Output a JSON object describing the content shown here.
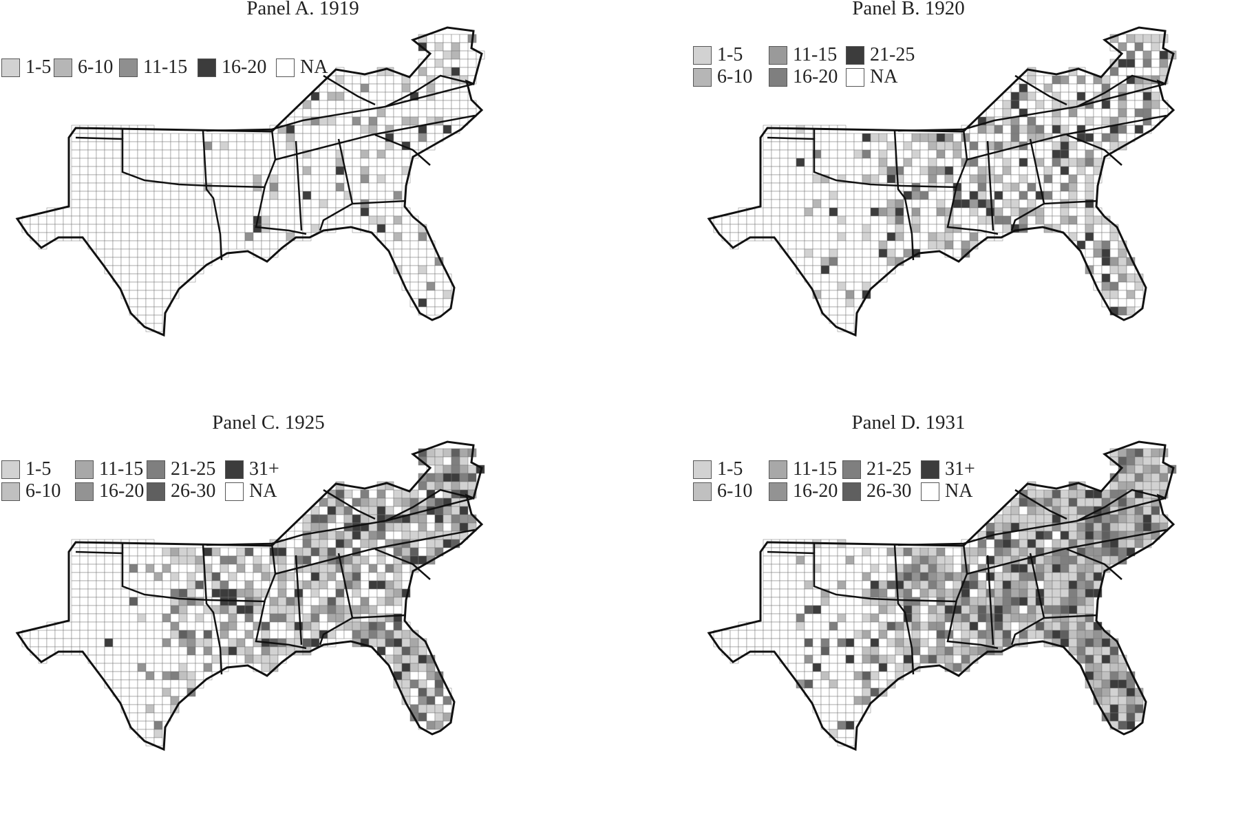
{
  "colors": {
    "na": "#ffffff",
    "c1": "#d2d2d2",
    "c2": "#b6b6b6",
    "c3": "#9a9a9a",
    "c4": "#7f7f7f",
    "c5": "#5f5f5f",
    "c6": "#3c3c3c",
    "border": "#111111",
    "county": "#777777"
  },
  "panels": [
    {
      "title": "Panel A. 1919",
      "legend_columns": 5,
      "legend": [
        {
          "label": "1-5",
          "color": "#d2d2d2"
        },
        {
          "label": "6-10",
          "color": "#b6b6b6"
        },
        {
          "label": "11-15",
          "color": "#8f8f8f"
        },
        {
          "label": "16-20",
          "color": "#3c3c3c"
        },
        {
          "label": "NA",
          "color": "#ffffff"
        }
      ],
      "shading_level": 1
    },
    {
      "title": "Panel B. 1920",
      "legend_columns": 3,
      "legend": [
        {
          "label": "1-5",
          "color": "#d2d2d2"
        },
        {
          "label": "11-15",
          "color": "#9a9a9a"
        },
        {
          "label": "21-25",
          "color": "#3c3c3c"
        },
        {
          "label": "6-10",
          "color": "#b6b6b6"
        },
        {
          "label": "16-20",
          "color": "#7f7f7f"
        },
        {
          "label": "NA",
          "color": "#ffffff"
        }
      ],
      "shading_level": 2
    },
    {
      "title": "Panel C. 1925",
      "legend_columns": 4,
      "legend": [
        {
          "label": "1-5",
          "color": "#d2d2d2"
        },
        {
          "label": "11-15",
          "color": "#a8a8a8"
        },
        {
          "label": "21-25",
          "color": "#7f7f7f"
        },
        {
          "label": "31+",
          "color": "#3c3c3c"
        },
        {
          "label": "6-10",
          "color": "#c0c0c0"
        },
        {
          "label": "16-20",
          "color": "#939393"
        },
        {
          "label": "26-30",
          "color": "#5f5f5f"
        },
        {
          "label": "NA",
          "color": "#ffffff"
        }
      ],
      "shading_level": 3
    },
    {
      "title": "Panel D. 1931",
      "legend_columns": 4,
      "legend": [
        {
          "label": "1-5",
          "color": "#d2d2d2"
        },
        {
          "label": "11-15",
          "color": "#a8a8a8"
        },
        {
          "label": "21-25",
          "color": "#7f7f7f"
        },
        {
          "label": "31+",
          "color": "#3c3c3c"
        },
        {
          "label": "6-10",
          "color": "#c0c0c0"
        },
        {
          "label": "16-20",
          "color": "#939393"
        },
        {
          "label": "26-30",
          "color": "#5f5f5f"
        },
        {
          "label": "NA",
          "color": "#ffffff"
        }
      ],
      "shading_level": 4
    }
  ]
}
